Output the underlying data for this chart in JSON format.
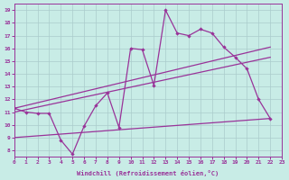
{
  "xlabel": "Windchill (Refroidissement éolien,°C)",
  "background_color": "#c8ece6",
  "line_color": "#993399",
  "grid_color": "#aacccc",
  "xlim": [
    0,
    23
  ],
  "ylim": [
    7.5,
    19.5
  ],
  "xticks": [
    0,
    1,
    2,
    3,
    4,
    5,
    6,
    7,
    8,
    9,
    10,
    11,
    12,
    13,
    14,
    15,
    16,
    17,
    18,
    19,
    20,
    21,
    22,
    23
  ],
  "yticks": [
    8,
    9,
    10,
    11,
    12,
    13,
    14,
    15,
    16,
    17,
    18,
    19
  ],
  "main_x": [
    0,
    1,
    2,
    3,
    4,
    5,
    6,
    7,
    8,
    9,
    10,
    11,
    12,
    13,
    14,
    15,
    16,
    17,
    18,
    19,
    20,
    21,
    22
  ],
  "main_y": [
    11.3,
    11.0,
    10.9,
    10.9,
    8.8,
    7.7,
    9.9,
    11.5,
    12.5,
    9.8,
    16.0,
    15.9,
    13.1,
    19.0,
    17.2,
    17.0,
    17.5,
    17.2,
    16.1,
    15.3,
    14.4,
    12.0,
    10.5
  ],
  "trend1_x": [
    0,
    22
  ],
  "trend1_y": [
    11.3,
    16.1
  ],
  "trend2_x": [
    0,
    22
  ],
  "trend2_y": [
    11.0,
    15.3
  ],
  "trend3_x": [
    0,
    22
  ],
  "trend3_y": [
    9.0,
    10.5
  ],
  "marker_size": 2.2,
  "lw": 0.9,
  "tick_fontsize": 4.5,
  "xlabel_fontsize": 5.0
}
